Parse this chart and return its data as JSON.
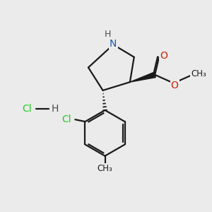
{
  "bg_color": "#ebebeb",
  "bond_color": "#1a1a1a",
  "N_color": "#1a56b0",
  "O_color": "#cc2200",
  "Cl_color": "#22cc22",
  "H_color": "#4a4a4a",
  "figsize": [
    3.0,
    3.0
  ],
  "dpi": 100,
  "lw": 1.6,
  "xlim": [
    0,
    10
  ],
  "ylim": [
    0,
    10
  ]
}
